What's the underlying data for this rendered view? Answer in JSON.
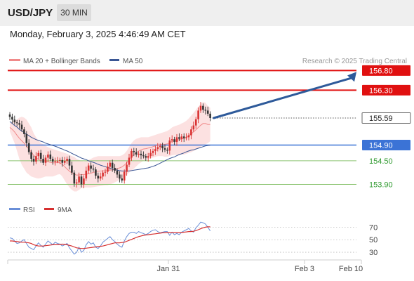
{
  "header": {
    "symbol": "USD/JPY",
    "timeframe": "30 MIN"
  },
  "datetime": "Monday, February 3, 2025 4:46:49 AM CET",
  "colors": {
    "up_candle": "#d93232",
    "down_candle": "#333333",
    "ma20": "#f08a8a",
    "band_fill": "#fbdcdc",
    "ma50": "#3a5694",
    "resistance": "#e01010",
    "pivot": "#3b73d6",
    "support": "#8cc471",
    "support_text": "#2f9a2f",
    "rsi": "#6a8fd8",
    "rsi_ma": "#d63030",
    "arrow": "#2e5a9a"
  },
  "chart_data": {
    "type": "candlestick",
    "y_axis_levels": [
      153.9,
      154.5,
      154.9,
      155.59,
      156.3,
      156.8
    ],
    "ylim": [
      153.55,
      156.95
    ],
    "x_ticks": [
      "Jan 31",
      "Feb 3",
      "Feb 10"
    ],
    "legend": [
      {
        "label": "MA 20 + Bollinger Bands",
        "color": "#f08a8a"
      },
      {
        "label": "MA 50",
        "color": "#3a5694"
      }
    ],
    "attribution": "Research © 2025 Trading Central",
    "levels": [
      {
        "value": 156.8,
        "label": "156.80",
        "role": "resistance"
      },
      {
        "value": 156.3,
        "label": "156.30",
        "role": "resistance"
      },
      {
        "value": 155.59,
        "label": "155.59",
        "role": "last_price"
      },
      {
        "value": 154.9,
        "label": "154.90",
        "role": "pivot"
      },
      {
        "value": 154.5,
        "label": "154.50",
        "role": "support"
      },
      {
        "value": 153.9,
        "label": "153.90",
        "role": "support"
      }
    ],
    "forecast_arrow": {
      "from": 155.59,
      "to": 156.8
    },
    "close": [
      155.62,
      155.55,
      155.48,
      155.46,
      155.42,
      155.3,
      155.18,
      154.95,
      154.72,
      154.55,
      154.48,
      154.62,
      154.7,
      154.55,
      154.45,
      154.58,
      154.66,
      154.55,
      154.48,
      154.5,
      154.5,
      154.52,
      154.45,
      154.5,
      154.55,
      154.38,
      154.2,
      153.92,
      153.95,
      154.1,
      153.9,
      154.05,
      154.25,
      154.38,
      154.3,
      154.28,
      154.12,
      154.05,
      154.1,
      154.2,
      154.22,
      154.35,
      154.45,
      154.32,
      154.25,
      154.15,
      154.05,
      154.0,
      154.22,
      154.4,
      154.58,
      154.75,
      154.72,
      154.66,
      154.68,
      154.64,
      154.62,
      154.58,
      154.62,
      154.7,
      154.75,
      154.8,
      154.85,
      154.88,
      154.82,
      154.78,
      154.76,
      155.02,
      155.05,
      154.98,
      155.1,
      155.06,
      155.12,
      155.08,
      155.1,
      155.15,
      155.3,
      155.4,
      155.56,
      155.78,
      155.9,
      155.8,
      155.78,
      155.7,
      155.59
    ],
    "bb_upper": [
      155.45,
      155.5,
      155.52,
      155.55,
      155.6,
      155.62,
      155.6,
      155.55,
      155.45,
      155.35,
      155.2,
      155.1,
      155.02,
      154.95,
      154.92,
      154.88,
      154.85,
      154.82,
      154.8,
      154.78,
      154.76,
      154.74,
      154.72,
      154.7,
      154.68,
      154.65,
      154.62,
      154.6,
      154.55,
      154.52,
      154.5,
      154.48,
      154.5,
      154.52,
      154.55,
      154.58,
      154.6,
      154.62,
      154.62,
      154.62,
      154.62,
      154.62,
      154.62,
      154.62,
      154.62,
      154.62,
      154.62,
      154.64,
      154.68,
      154.75,
      154.85,
      154.95,
      155.02,
      155.06,
      155.08,
      155.1,
      155.1,
      155.1,
      155.1,
      155.12,
      155.14,
      155.16,
      155.18,
      155.2,
      155.22,
      155.24,
      155.26,
      155.3,
      155.35,
      155.38,
      155.4,
      155.42,
      155.45,
      155.48,
      155.52,
      155.58,
      155.65,
      155.72,
      155.8,
      155.88,
      155.95,
      156.0,
      155.98,
      155.9,
      155.85
    ],
    "bb_lower": [
      155.25,
      155.1,
      154.95,
      154.75,
      154.55,
      154.4,
      154.3,
      154.2,
      154.15,
      154.1,
      154.08,
      154.06,
      154.05,
      154.06,
      154.08,
      154.1,
      154.1,
      154.1,
      154.1,
      154.12,
      154.15,
      154.16,
      154.1,
      154.0,
      153.9,
      153.82,
      153.76,
      153.72,
      153.72,
      153.76,
      153.8,
      153.82,
      153.82,
      153.82,
      153.82,
      153.83,
      153.84,
      153.85,
      153.86,
      153.87,
      153.88,
      153.88,
      153.9,
      153.92,
      153.95,
      153.98,
      154.02,
      154.05,
      154.1,
      154.15,
      154.2,
      154.25,
      154.3,
      154.36,
      154.42,
      154.46,
      154.5,
      154.52,
      154.55,
      154.56,
      154.58,
      154.6,
      154.62,
      154.62,
      154.62,
      154.6,
      154.6,
      154.62,
      154.64,
      154.65,
      154.65,
      154.66,
      154.66,
      154.66,
      154.68,
      154.7,
      154.72,
      154.75,
      154.78,
      154.82,
      154.86,
      154.9,
      154.92,
      154.95,
      155.0
    ],
    "ma50": [
      155.5,
      155.45,
      155.4,
      155.36,
      155.3,
      155.26,
      155.22,
      155.18,
      155.14,
      155.1,
      155.07,
      155.04,
      155.02,
      155.0,
      154.98,
      154.95,
      154.93,
      154.91,
      154.89,
      154.87,
      154.85,
      154.82,
      154.8,
      154.77,
      154.75,
      154.72,
      154.69,
      154.66,
      154.63,
      154.6,
      154.57,
      154.55,
      154.53,
      154.5,
      154.48,
      154.46,
      154.44,
      154.41,
      154.39,
      154.37,
      154.35,
      154.33,
      154.31,
      154.29,
      154.28,
      154.26,
      154.25,
      154.24,
      154.24,
      154.24,
      154.24,
      154.25,
      154.26,
      154.27,
      154.28,
      154.29,
      154.3,
      154.31,
      154.32,
      154.34,
      154.36,
      154.38,
      154.41,
      154.44,
      154.47,
      154.5,
      154.53,
      154.56,
      154.58,
      154.6,
      154.63,
      154.66,
      154.68,
      154.7,
      154.73,
      154.75,
      154.77,
      154.78,
      154.8,
      154.82,
      154.84,
      154.86,
      154.88,
      154.89,
      154.9
    ],
    "rsi_panel": {
      "legend": [
        {
          "label": "RSI",
          "color": "#6a8fd8"
        },
        {
          "label": "9MA",
          "color": "#d63030"
        }
      ],
      "y_ticks": [
        70,
        50,
        30
      ],
      "ylim": [
        20,
        85
      ],
      "rsi": [
        53,
        52,
        48,
        44,
        45,
        48,
        50,
        44,
        38,
        36,
        34,
        40,
        45,
        41,
        38,
        43,
        48,
        45,
        42,
        46,
        44,
        43,
        40,
        42,
        44,
        37,
        32,
        27,
        30,
        38,
        30,
        33,
        42,
        47,
        43,
        45,
        38,
        36,
        40,
        46,
        49,
        52,
        55,
        50,
        47,
        43,
        40,
        38,
        48,
        55,
        60,
        62,
        62,
        60,
        63,
        61,
        60,
        58,
        60,
        63,
        65,
        66,
        63,
        61,
        62,
        63,
        63,
        57,
        62,
        58,
        60,
        58,
        62,
        64,
        66,
        68,
        64,
        62,
        69,
        73,
        78,
        77,
        75,
        70,
        64
      ],
      "rsi_ma": [
        48,
        48,
        47.5,
        47,
        46.5,
        46,
        46,
        45.5,
        45,
        44,
        42,
        41,
        40,
        40,
        40,
        40.5,
        41,
        41.5,
        42,
        42,
        42,
        42.5,
        43,
        42.5,
        42,
        41,
        40,
        38.5,
        37,
        36.5,
        36,
        36,
        36.5,
        37,
        37.5,
        38,
        38.5,
        39,
        39.5,
        40,
        41,
        42,
        43,
        44,
        45,
        45,
        45,
        45.5,
        46,
        47.5,
        49,
        50.5,
        52,
        53.5,
        55,
        56,
        57,
        57.5,
        58,
        58.5,
        59,
        59.5,
        60,
        60.5,
        61,
        61,
        61.5,
        61.5,
        61.5,
        61.5,
        61.5,
        61.5,
        61.5,
        62,
        62.5,
        63,
        63,
        63.5,
        64.5,
        66,
        67.5,
        69,
        70,
        70.5,
        70.5
      ]
    }
  }
}
